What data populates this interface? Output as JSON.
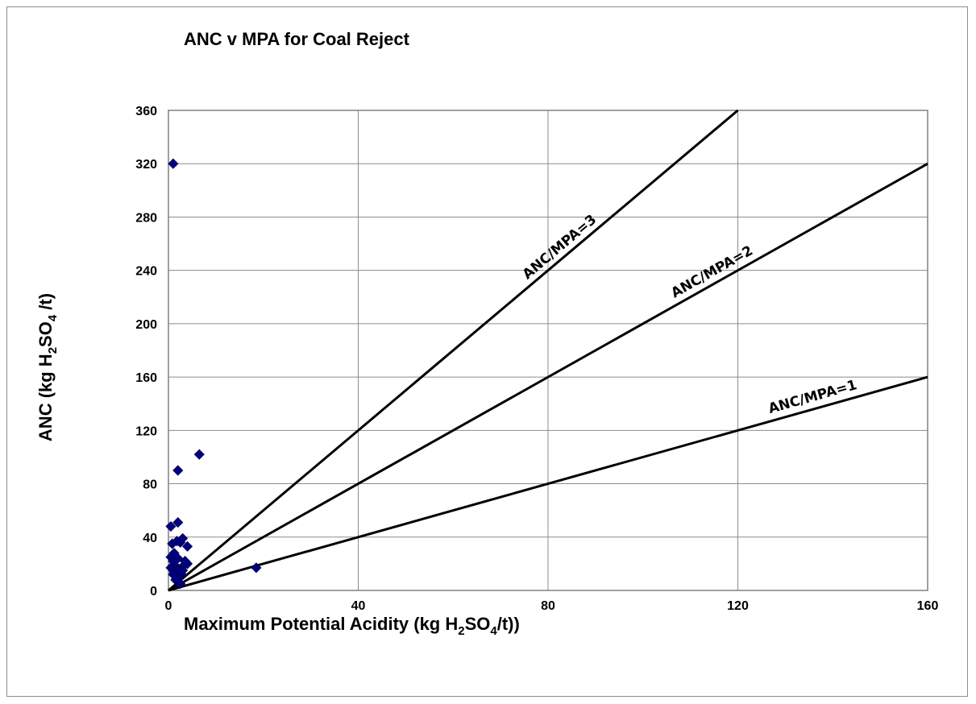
{
  "chart_data": {
    "type": "scatter",
    "title": "ANC v MPA for Coal Reject",
    "xlabel": {
      "pre": "Maximum Potential Acidity (kg H",
      "sub1": "2",
      "mid": "SO",
      "sub2": "4",
      "post": "/t))"
    },
    "ylabel": {
      "pre": "ANC (kg H",
      "sub1": "2",
      "mid": "SO",
      "sub2": "4",
      "post": " /t)"
    },
    "xlim": [
      0,
      160
    ],
    "ylim": [
      0,
      360
    ],
    "xticks": [
      0,
      40,
      80,
      120,
      160
    ],
    "yticks": [
      0,
      40,
      80,
      120,
      160,
      200,
      240,
      280,
      320,
      360
    ],
    "grid": true,
    "marker_color": "#000080",
    "points": [
      [
        0.5,
        48
      ],
      [
        1.0,
        320
      ],
      [
        6.5,
        102
      ],
      [
        2.0,
        90
      ],
      [
        2.0,
        51
      ],
      [
        0.8,
        35
      ],
      [
        1.2,
        28
      ],
      [
        1.8,
        37
      ],
      [
        2.5,
        36
      ],
      [
        3.0,
        39
      ],
      [
        4.0,
        33
      ],
      [
        0.5,
        25
      ],
      [
        1.0,
        22
      ],
      [
        1.5,
        18
      ],
      [
        0.5,
        17
      ],
      [
        1.2,
        14
      ],
      [
        2.2,
        16
      ],
      [
        3.0,
        18
      ],
      [
        4.0,
        20
      ],
      [
        3.5,
        22
      ],
      [
        2.8,
        12
      ],
      [
        2.0,
        10
      ],
      [
        1.5,
        8
      ],
      [
        2.5,
        5
      ],
      [
        3.0,
        15
      ],
      [
        1.0,
        12
      ],
      [
        2.0,
        24
      ],
      [
        18.5,
        17
      ]
    ],
    "ratio_lines": [
      {
        "slope": 1,
        "label": "ANC/MPA=1"
      },
      {
        "slope": 2,
        "label": "ANC/MPA=2"
      },
      {
        "slope": 3,
        "label": "ANC/MPA=3"
      }
    ]
  }
}
